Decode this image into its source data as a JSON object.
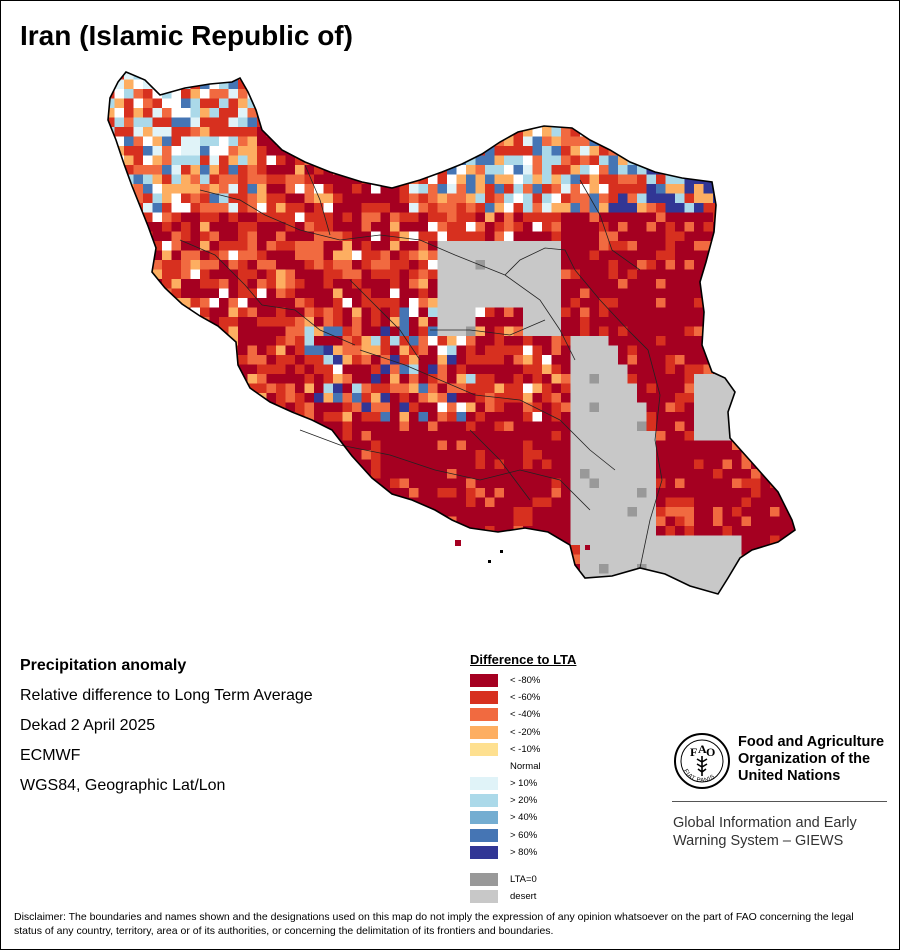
{
  "title": "Iran (Islamic Republic of)",
  "metadata": {
    "heading": "Precipitation anomaly",
    "line1": "Relative difference to Long Term Average",
    "line2": "Dekad 2 April 2025",
    "line3": "ECMWF",
    "line4": "WGS84, Geographic Lat/Lon"
  },
  "legend": {
    "title": "Difference to LTA",
    "classes": [
      {
        "label": "< -80%",
        "color": "#a50021"
      },
      {
        "label": "< -60%",
        "color": "#d7301f"
      },
      {
        "label": "< -40%",
        "color": "#f16a40"
      },
      {
        "label": "< -20%",
        "color": "#fdae61"
      },
      {
        "label": "< -10%",
        "color": "#fee090"
      },
      {
        "label": "Normal",
        "color": "#ffffff"
      },
      {
        "label": "> 10%",
        "color": "#e0f3f8"
      },
      {
        "label": "> 20%",
        "color": "#abd9e9"
      },
      {
        "label": "> 40%",
        "color": "#74add1"
      },
      {
        "label": "> 60%",
        "color": "#4575b4"
      },
      {
        "label": "> 80%",
        "color": "#313695"
      }
    ],
    "extra": [
      {
        "label": "LTA=0",
        "color": "#999999"
      },
      {
        "label": "desert",
        "color": "#c8c8c8"
      }
    ]
  },
  "org": {
    "logo_text": "FIAT PANIS",
    "logo_letters": "FAO",
    "name_line1": "Food and Agriculture",
    "name_line2": "Organization of the",
    "name_line3": "United Nations",
    "system_line1": "Global Information and Early",
    "system_line2": "Warning System – GIEWS"
  },
  "disclaimer": "Disclaimer: The boundaries and names shown and the designations used on this map do not imply the expression of any opinion whatsoever on the part of FAO concerning the legal status of any country, territory, area or of its authorities, or concerning the delimitation of its frontiers and boundaries."
}
